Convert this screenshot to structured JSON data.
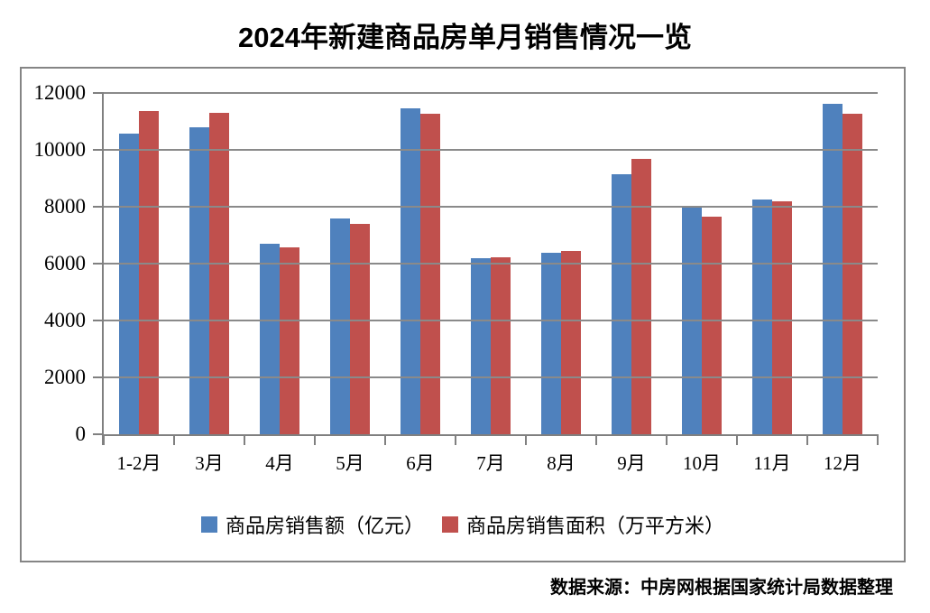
{
  "chart_data": {
    "type": "bar",
    "title": "2024年新建商品房单月销售情况一览",
    "categories": [
      "1-2月",
      "3月",
      "4月",
      "5月",
      "6月",
      "7月",
      "8月",
      "9月",
      "10月",
      "11月",
      "12月"
    ],
    "series": [
      {
        "name": "商品房销售额（亿元）",
        "color": "#4F81BD",
        "values": [
          10566,
          10789,
          6712,
          7598,
          11468,
          6197,
          6393,
          9157,
          7975,
          8270,
          11625
        ]
      },
      {
        "name": "商品房销售面积（万平方米）",
        "color": "#C0504D",
        "values": [
          11369,
          11299,
          6584,
          7390,
          11274,
          6233,
          6453,
          9682,
          7646,
          8188,
          11267
        ]
      }
    ],
    "xlabel": "",
    "ylabel": "",
    "ylim": [
      0,
      12000
    ],
    "yticks": [
      0,
      2000,
      4000,
      6000,
      8000,
      10000,
      12000
    ],
    "grid": true,
    "legend_position": "bottom",
    "source_note": "数据来源：中房网根据国家统计局数据整理"
  },
  "colors": {
    "series1": "#4F81BD",
    "series2": "#C0504D",
    "gridline": "#8a8a8a",
    "axis": "#808080",
    "frame_border": "#858585",
    "title_text": "#000000"
  }
}
